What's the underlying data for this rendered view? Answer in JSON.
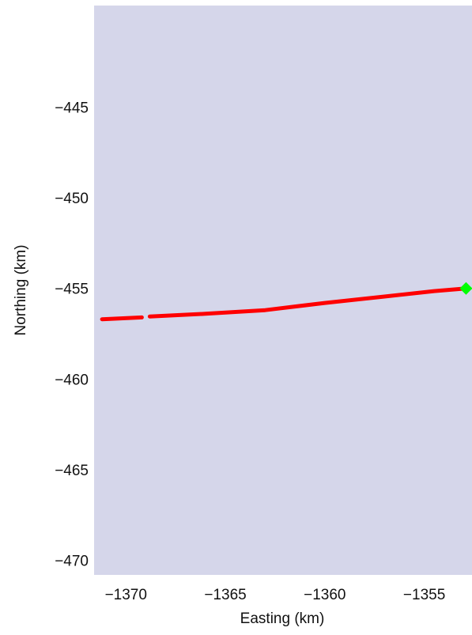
{
  "map": {
    "background_color": "#d5d6ea",
    "xlabel": "Easting (km)",
    "ylabel": "Northing (km)",
    "xlim": [
      -1371.6,
      -1352.6
    ],
    "ylim": [
      -470.8,
      -439.4
    ],
    "xticks": [
      {
        "value": -1370,
        "label": "−1370"
      },
      {
        "value": -1365,
        "label": "−1365"
      },
      {
        "value": -1360,
        "label": "−1360"
      },
      {
        "value": -1355,
        "label": "−1355"
      }
    ],
    "yticks": [
      {
        "value": -445,
        "label": "−445"
      },
      {
        "value": -450,
        "label": "−450"
      },
      {
        "value": -455,
        "label": "−455"
      },
      {
        "value": -460,
        "label": "−460"
      },
      {
        "value": -465,
        "label": "−465"
      },
      {
        "value": -470,
        "label": "−470"
      }
    ]
  },
  "chart_data": {
    "type": "line",
    "title": "",
    "xlabel": "Easting (km)",
    "ylabel": "Northing (km)",
    "xlim": [
      -1371.6,
      -1352.6
    ],
    "ylim": [
      -470.8,
      -439.4
    ],
    "grid": false,
    "series": [
      {
        "color": "#ff0000",
        "segments": [
          [
            [
              -1371.2,
              -456.7
            ],
            [
              -1369.2,
              -456.6
            ]
          ],
          [
            [
              -1368.8,
              -456.55
            ],
            [
              -1366.0,
              -456.4
            ],
            [
              -1363.0,
              -456.2
            ],
            [
              -1360.0,
              -455.8
            ],
            [
              -1357.0,
              -455.45
            ],
            [
              -1354.5,
              -455.15
            ],
            [
              -1352.9,
              -455.0
            ]
          ]
        ]
      }
    ],
    "markers": [
      {
        "x": -1352.9,
        "y": -455.0,
        "color": "#00ff00",
        "shape": "diamond"
      }
    ]
  }
}
